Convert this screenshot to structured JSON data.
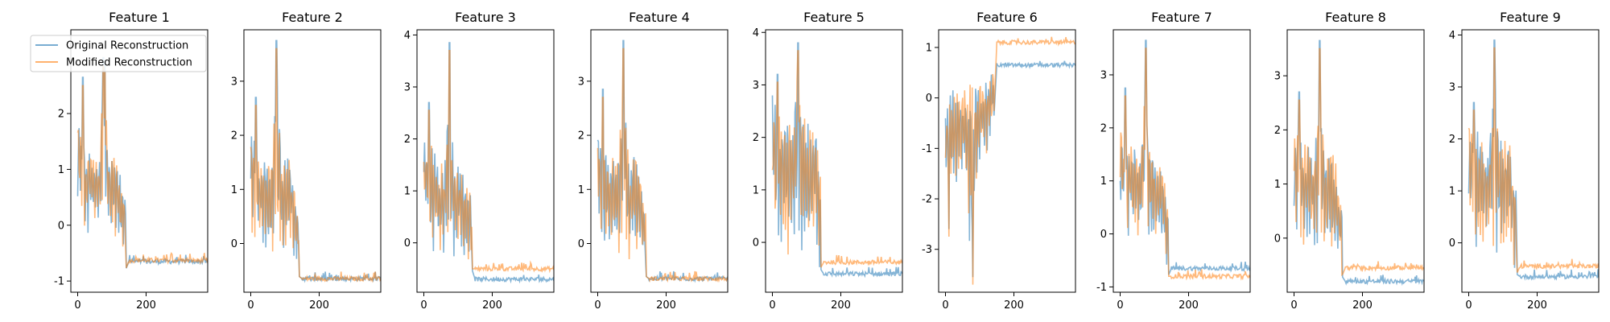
{
  "chart_data": {
    "type": "line",
    "legend": {
      "entries": [
        "Original Reconstruction",
        "Modified Reconstruction"
      ],
      "placement": "upper-left of first panel"
    },
    "series_colors": [
      "#1f77b4",
      "#ff7f0e"
    ],
    "x_range": [
      0,
      380
    ],
    "panels": [
      {
        "title": "Feature 1",
        "ylim": [
          -1.2,
          3.5
        ],
        "yticks": [
          -1,
          0,
          1,
          2
        ],
        "xticks": [
          0,
          200
        ],
        "high_range": [
          [
            0,
            2.0
          ],
          [
            20,
            1.4
          ],
          [
            40,
            1.3
          ],
          [
            60,
            1.2
          ],
          [
            75,
            2.6
          ],
          [
            90,
            1.4
          ],
          [
            110,
            1.3
          ],
          [
            125,
            1.0
          ],
          [
            140,
            0.6
          ]
        ],
        "low_range": [
          [
            0,
            0.3
          ],
          [
            20,
            -0.2
          ],
          [
            40,
            -0.1
          ],
          [
            60,
            -0.2
          ],
          [
            75,
            0.0
          ],
          [
            90,
            -0.3
          ],
          [
            110,
            -0.2
          ],
          [
            125,
            -0.3
          ],
          [
            140,
            -0.8
          ]
        ],
        "tail": [
          -0.65,
          -0.63
        ],
        "peaks": [
          [
            15,
            2.65
          ],
          [
            75,
            3.0
          ],
          [
            80,
            2.9
          ]
        ]
      },
      {
        "title": "Feature 2",
        "ylim": [
          -0.9,
          3.95
        ],
        "yticks": [
          0,
          1,
          2,
          3
        ],
        "xticks": [
          0,
          200
        ],
        "high_range": [
          [
            0,
            2.2
          ],
          [
            20,
            1.6
          ],
          [
            40,
            1.5
          ],
          [
            60,
            1.4
          ],
          [
            75,
            3.3
          ],
          [
            90,
            1.5
          ],
          [
            110,
            1.6
          ],
          [
            125,
            1.3
          ],
          [
            140,
            0.5
          ]
        ],
        "low_range": [
          [
            0,
            0.3
          ],
          [
            20,
            -0.2
          ],
          [
            40,
            -0.1
          ],
          [
            60,
            -0.2
          ],
          [
            75,
            0.0
          ],
          [
            90,
            -0.3
          ],
          [
            110,
            -0.2
          ],
          [
            125,
            -0.2
          ],
          [
            140,
            -0.6
          ]
        ],
        "tail": [
          -0.65,
          -0.65
        ],
        "peaks": [
          [
            15,
            2.7
          ],
          [
            75,
            3.75
          ]
        ]
      },
      {
        "title": "Feature 3",
        "ylim": [
          -0.95,
          4.1
        ],
        "yticks": [
          0,
          1,
          2,
          3,
          4
        ],
        "xticks": [
          0,
          200
        ],
        "high_range": [
          [
            0,
            2.0
          ],
          [
            20,
            1.9
          ],
          [
            40,
            1.6
          ],
          [
            60,
            1.5
          ],
          [
            75,
            3.0
          ],
          [
            90,
            1.5
          ],
          [
            110,
            1.6
          ],
          [
            125,
            1.2
          ],
          [
            140,
            1.0
          ]
        ],
        "low_range": [
          [
            0,
            0.4
          ],
          [
            20,
            -0.2
          ],
          [
            40,
            -0.1
          ],
          [
            60,
            -0.2
          ],
          [
            75,
            0.0
          ],
          [
            90,
            -0.3
          ],
          [
            110,
            -0.3
          ],
          [
            125,
            -0.4
          ],
          [
            140,
            -0.5
          ]
        ],
        "tail": [
          -0.7,
          -0.5
        ],
        "peaks": [
          [
            15,
            2.7
          ],
          [
            75,
            3.85
          ]
        ]
      },
      {
        "title": "Feature 4",
        "ylim": [
          -0.9,
          3.95
        ],
        "yticks": [
          0,
          1,
          2,
          3
        ],
        "xticks": [
          0,
          200
        ],
        "high_range": [
          [
            0,
            2.1
          ],
          [
            20,
            1.8
          ],
          [
            40,
            1.6
          ],
          [
            60,
            1.5
          ],
          [
            75,
            3.3
          ],
          [
            90,
            1.5
          ],
          [
            110,
            1.7
          ],
          [
            125,
            1.3
          ],
          [
            140,
            0.6
          ]
        ],
        "low_range": [
          [
            0,
            0.4
          ],
          [
            20,
            -0.2
          ],
          [
            40,
            -0.1
          ],
          [
            60,
            -0.2
          ],
          [
            75,
            0.0
          ],
          [
            90,
            -0.3
          ],
          [
            110,
            -0.2
          ],
          [
            125,
            -0.2
          ],
          [
            140,
            -0.6
          ]
        ],
        "tail": [
          -0.65,
          -0.65
        ],
        "peaks": [
          [
            15,
            2.85
          ],
          [
            75,
            3.75
          ]
        ]
      },
      {
        "title": "Feature 5",
        "ylim": [
          -0.95,
          4.05
        ],
        "yticks": [
          0,
          1,
          2,
          3,
          4
        ],
        "xticks": [
          0,
          200
        ],
        "high_range": [
          [
            0,
            2.8
          ],
          [
            20,
            2.4
          ],
          [
            40,
            2.2
          ],
          [
            60,
            2.3
          ],
          [
            75,
            3.3
          ],
          [
            90,
            2.4
          ],
          [
            110,
            2.2
          ],
          [
            125,
            2.4
          ],
          [
            140,
            1.4
          ]
        ],
        "low_range": [
          [
            0,
            0.4
          ],
          [
            20,
            -0.3
          ],
          [
            40,
            -0.2
          ],
          [
            60,
            -0.3
          ],
          [
            75,
            0.0
          ],
          [
            90,
            -0.3
          ],
          [
            110,
            -0.3
          ],
          [
            125,
            -0.3
          ],
          [
            140,
            -0.5
          ]
        ],
        "tail": [
          -0.6,
          -0.38
        ],
        "peaks": [
          [
            15,
            3.2
          ],
          [
            75,
            3.8
          ]
        ]
      },
      {
        "title": "Feature 6",
        "ylim": [
          -3.85,
          1.35
        ],
        "yticks": [
          -3,
          -2,
          -1,
          0,
          1
        ],
        "xticks": [
          0,
          200
        ],
        "high_range": [
          [
            0,
            -0.3
          ],
          [
            20,
            0.2
          ],
          [
            40,
            0.1
          ],
          [
            60,
            0.2
          ],
          [
            75,
            0.3
          ],
          [
            90,
            0.2
          ],
          [
            110,
            0.3
          ],
          [
            125,
            0.3
          ],
          [
            140,
            0.6
          ]
        ],
        "low_range": [
          [
            0,
            -1.5
          ],
          [
            20,
            -2.0
          ],
          [
            40,
            -1.6
          ],
          [
            60,
            -1.7
          ],
          [
            75,
            -3.4
          ],
          [
            90,
            -1.6
          ],
          [
            110,
            -1.3
          ],
          [
            125,
            -1.0
          ],
          [
            140,
            -0.6
          ]
        ],
        "tail": [
          0.65,
          1.1
        ],
        "peaks": [
          [
            10,
            -2.6
          ],
          [
            80,
            -3.55
          ]
        ]
      },
      {
        "title": "Feature 7",
        "ylim": [
          -1.1,
          3.85
        ],
        "yticks": [
          -1,
          0,
          1,
          2,
          3
        ],
        "xticks": [
          0,
          200
        ],
        "high_range": [
          [
            0,
            2.0
          ],
          [
            20,
            1.8
          ],
          [
            40,
            1.6
          ],
          [
            60,
            1.5
          ],
          [
            75,
            3.0
          ],
          [
            90,
            1.5
          ],
          [
            110,
            1.6
          ],
          [
            125,
            1.2
          ],
          [
            140,
            0.5
          ]
        ],
        "low_range": [
          [
            0,
            0.4
          ],
          [
            20,
            -0.2
          ],
          [
            40,
            -0.1
          ],
          [
            60,
            -0.2
          ],
          [
            75,
            0.0
          ],
          [
            90,
            -0.3
          ],
          [
            110,
            -0.3
          ],
          [
            125,
            -0.3
          ],
          [
            140,
            -0.8
          ]
        ],
        "tail": [
          -0.65,
          -0.8
        ],
        "peaks": [
          [
            15,
            2.75
          ],
          [
            75,
            3.65
          ]
        ]
      },
      {
        "title": "Feature 8",
        "ylim": [
          -1.0,
          3.85
        ],
        "yticks": [
          0,
          1,
          2,
          3
        ],
        "xticks": [
          0,
          200
        ],
        "high_range": [
          [
            0,
            2.0
          ],
          [
            20,
            1.8
          ],
          [
            40,
            1.7
          ],
          [
            60,
            1.5
          ],
          [
            75,
            3.0
          ],
          [
            90,
            1.6
          ],
          [
            110,
            1.7
          ],
          [
            125,
            1.3
          ],
          [
            140,
            0.5
          ]
        ],
        "low_range": [
          [
            0,
            0.4
          ],
          [
            20,
            -0.2
          ],
          [
            40,
            -0.1
          ],
          [
            60,
            -0.2
          ],
          [
            75,
            0.0
          ],
          [
            90,
            -0.3
          ],
          [
            110,
            -0.3
          ],
          [
            125,
            -0.3
          ],
          [
            140,
            -0.7
          ]
        ],
        "tail": [
          -0.8,
          -0.55
        ],
        "peaks": [
          [
            15,
            2.7
          ],
          [
            75,
            3.65
          ]
        ]
      },
      {
        "title": "Feature 9",
        "ylim": [
          -0.95,
          4.1
        ],
        "yticks": [
          0,
          1,
          2,
          3,
          4
        ],
        "xticks": [
          0,
          200
        ],
        "high_range": [
          [
            0,
            2.3
          ],
          [
            20,
            2.2
          ],
          [
            40,
            2.0
          ],
          [
            60,
            1.9
          ],
          [
            75,
            3.2
          ],
          [
            90,
            2.0
          ],
          [
            110,
            2.1
          ],
          [
            125,
            1.8
          ],
          [
            140,
            1.0
          ]
        ],
        "low_range": [
          [
            0,
            0.3
          ],
          [
            20,
            -0.3
          ],
          [
            40,
            -0.2
          ],
          [
            60,
            -0.3
          ],
          [
            75,
            0.0
          ],
          [
            90,
            -0.4
          ],
          [
            110,
            -0.3
          ],
          [
            125,
            -0.3
          ],
          [
            140,
            -0.6
          ]
        ],
        "tail": [
          -0.65,
          -0.45
        ],
        "peaks": [
          [
            15,
            2.7
          ],
          [
            75,
            3.9
          ]
        ]
      }
    ]
  }
}
